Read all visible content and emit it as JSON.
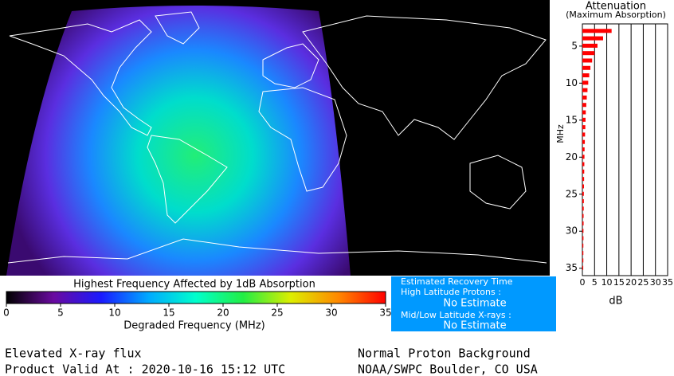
{
  "chart_data": {
    "type": "bar",
    "orientation": "horizontal",
    "title": "Attenuation",
    "subtitle": "(Maximum Absorption)",
    "ylabel": "MHz",
    "xlabel": "dB",
    "y": [
      3,
      4,
      5,
      6,
      7,
      8,
      9,
      10,
      11,
      12,
      13,
      14,
      15,
      16,
      17,
      18,
      19,
      20,
      21,
      22,
      23,
      24,
      25,
      26,
      27,
      28,
      29,
      30,
      31,
      32,
      33,
      34,
      35
    ],
    "values": [
      12,
      8.5,
      6.2,
      5,
      4,
      3.3,
      2.8,
      2.4,
      2.1,
      1.8,
      1.6,
      1.4,
      1.3,
      1.2,
      1.1,
      1,
      0.9,
      0.85,
      0.8,
      0.75,
      0.7,
      0.65,
      0.6,
      0.6,
      0.55,
      0.5,
      0.5,
      0.45,
      0.45,
      0.4,
      0.4,
      0.4,
      0.35
    ],
    "color": "#ff0000",
    "xlim": [
      0,
      35
    ],
    "xticks": [
      0,
      5,
      10,
      15,
      20,
      25,
      30,
      35
    ],
    "ylim": [
      2,
      36
    ],
    "yticks": [
      5,
      10,
      15,
      20,
      25,
      30,
      35
    ],
    "grid": true
  },
  "colorbar": {
    "title": "Highest Frequency Affected by 1dB Absorption",
    "xlabel": "Degraded Frequency (MHz)",
    "xlim": [
      0,
      35
    ],
    "xticks": [
      0,
      5,
      10,
      15,
      20,
      25,
      30,
      35
    ],
    "colors": [
      "#000000",
      "#6a0aa0",
      "#1a1aff",
      "#00aaff",
      "#00ffcc",
      "#22ee44",
      "#ddee00",
      "#ff8800",
      "#ff0000"
    ]
  },
  "recovery": {
    "title": "Estimated Recovery Time",
    "high_label": "High Latitude Protons :",
    "high_value": "No Estimate",
    "low_label": "Mid/Low Latitude X-rays :",
    "low_value": "No Estimate"
  },
  "footer": {
    "status": "Elevated X-ray flux",
    "valid": "Product Valid At : 2020-10-16 15:12 UTC",
    "proton": "Normal Proton Background",
    "source": "NOAA/SWPC Boulder, CO USA"
  }
}
